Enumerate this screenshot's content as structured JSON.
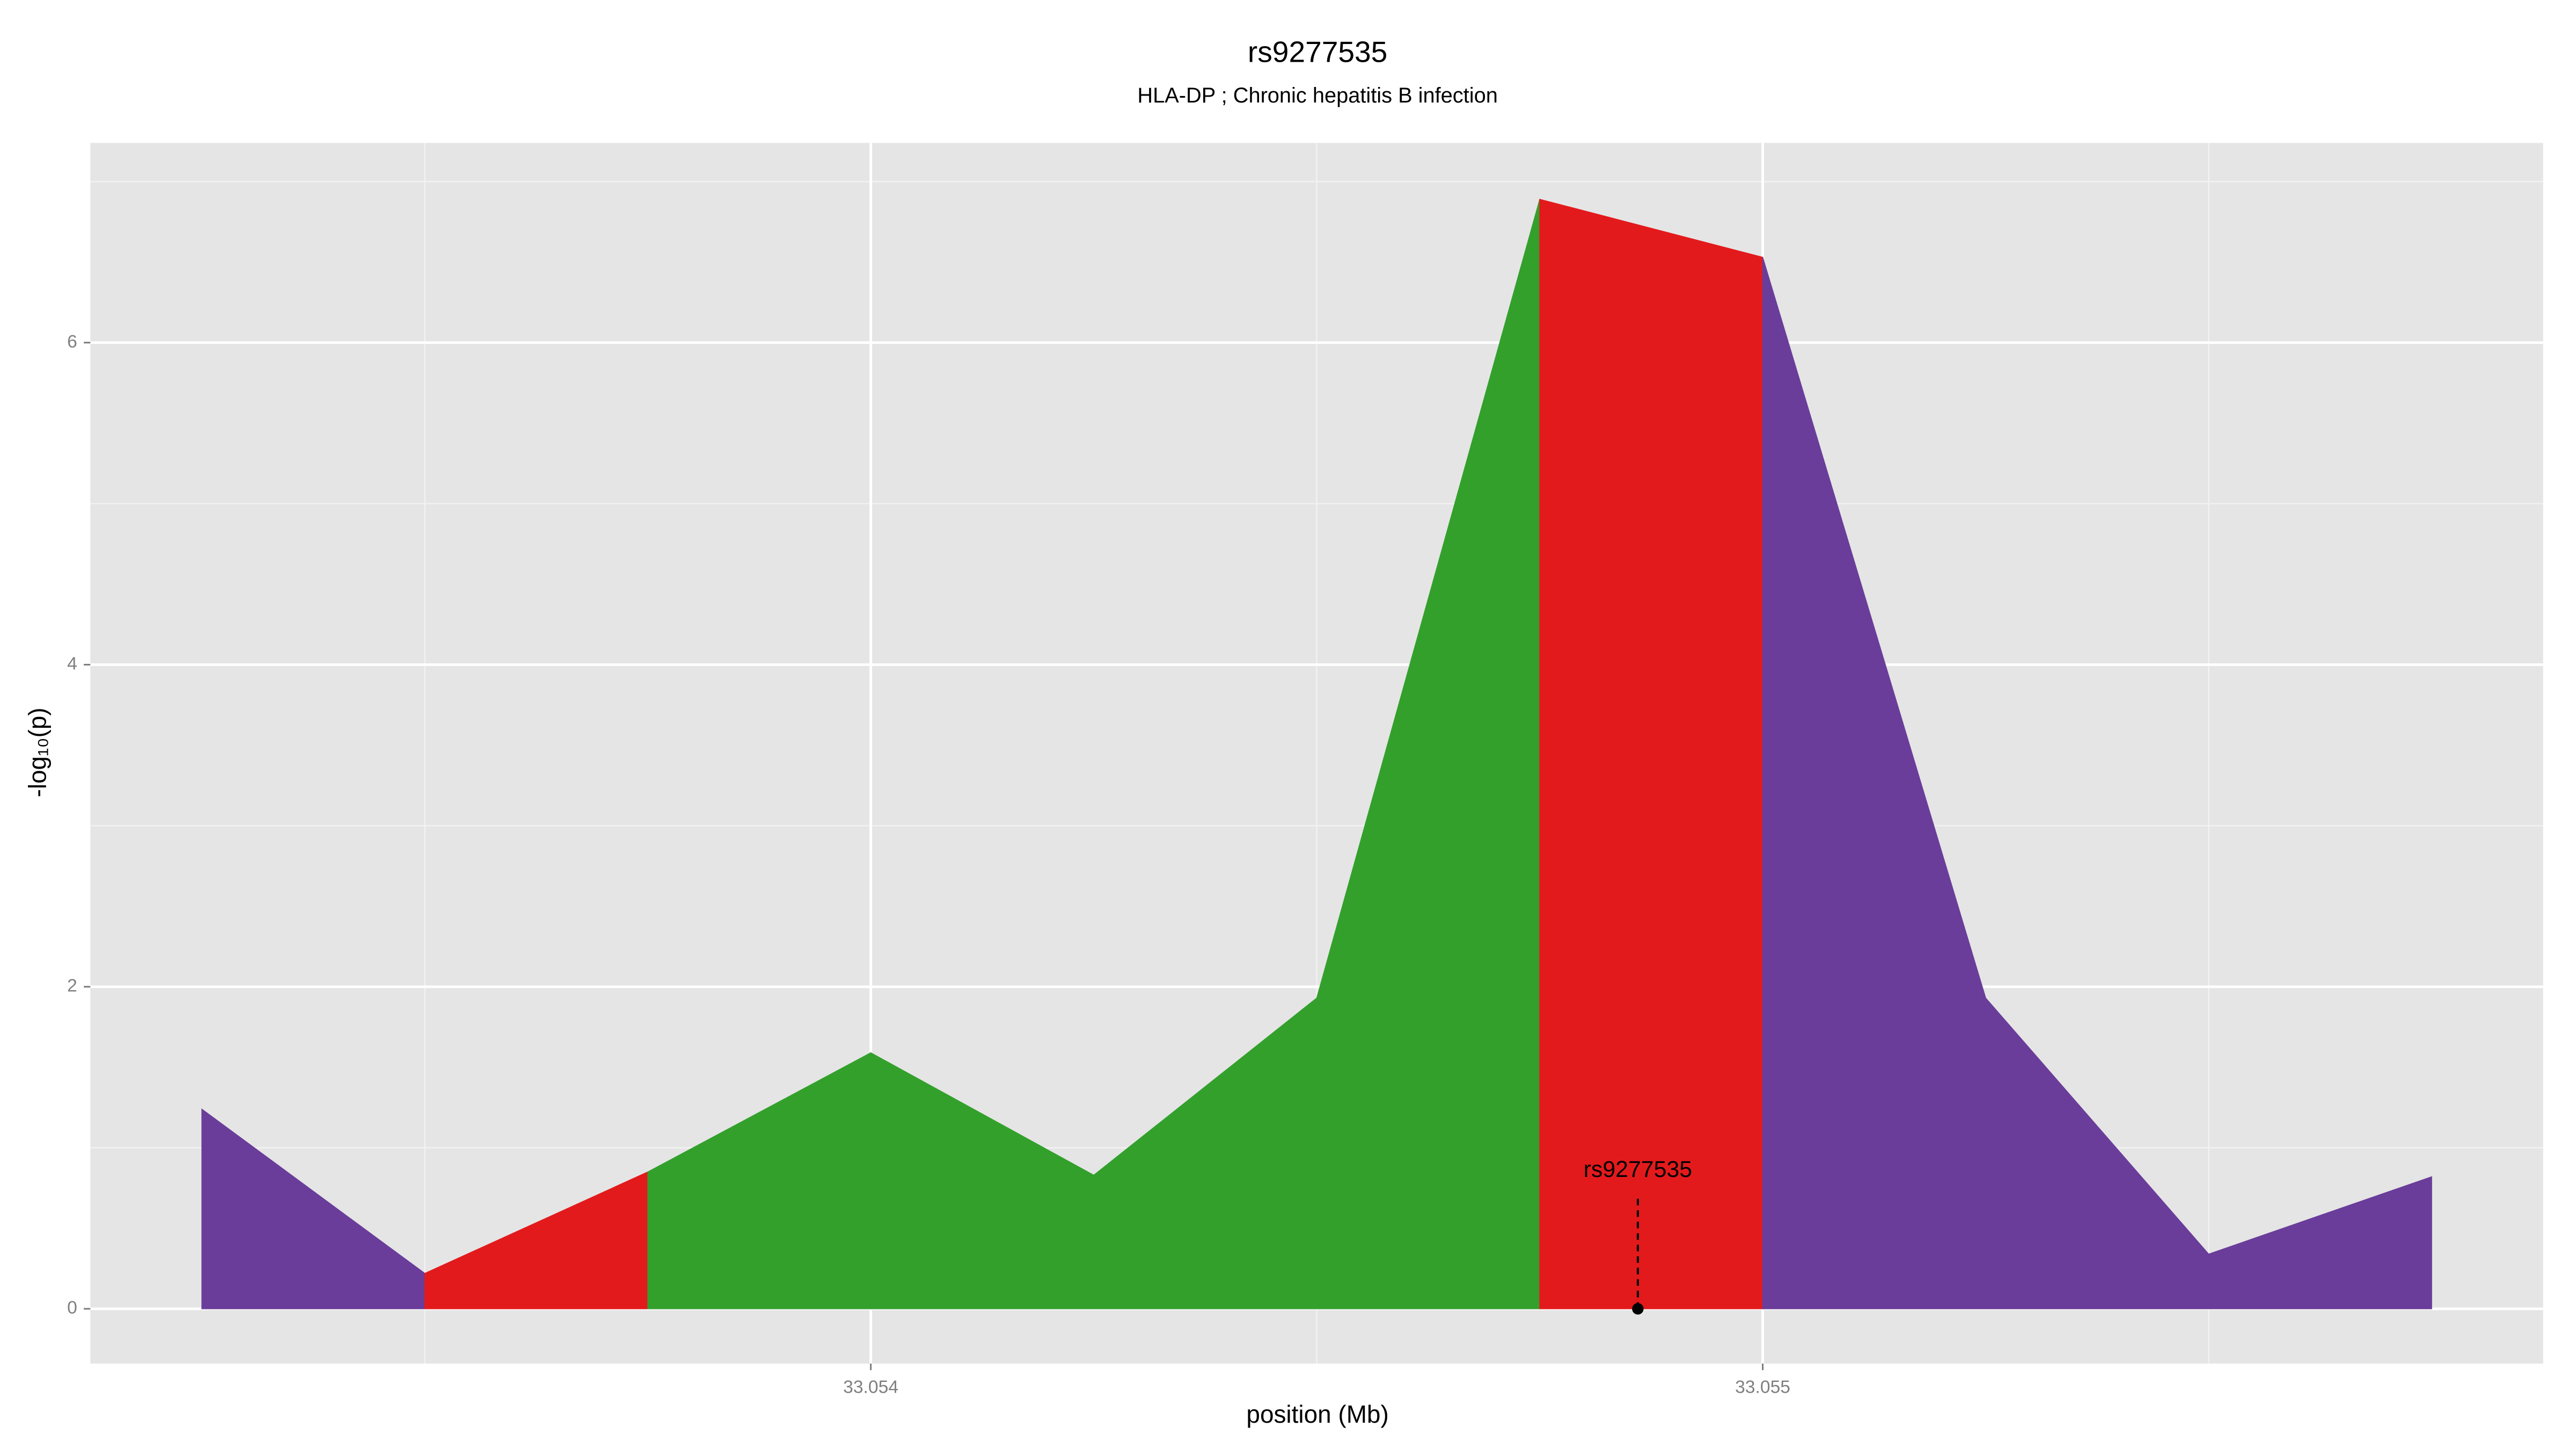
{
  "chart_data": {
    "type": "area-segments",
    "title": "rs9277535",
    "subtitle": "HLA-DP ; Chronic hepatitis B infection",
    "x_label": "position (Mb)",
    "y_label": "-log₁₀(p)",
    "x": [
      33.05325,
      33.0535,
      33.05375,
      33.054,
      33.05425,
      33.0545,
      33.05475,
      33.055,
      33.05525,
      33.0555,
      33.05575
    ],
    "values": [
      1.24,
      0.22,
      0.85,
      1.59,
      0.83,
      1.93,
      6.89,
      6.53,
      1.93,
      0.34,
      0.82
    ],
    "segment_colors": [
      "#6a3d9a",
      "#e31a1c",
      "#33a02c",
      "#33a02c",
      "#33a02c",
      "#33a02c",
      "#e31a1c",
      "#6a3d9a",
      "#6a3d9a",
      "#6a3d9a"
    ],
    "xlim": [
      33.053125,
      33.055875
    ],
    "ylim": [
      -0.34,
      7.24
    ],
    "xticks": [
      33.054,
      33.055
    ],
    "xminorticks": [
      33.0535,
      33.0545,
      33.0555
    ],
    "yticks": [
      0,
      2,
      4,
      6
    ],
    "yminorticks": [
      1,
      3,
      5,
      7
    ],
    "grid": true,
    "annotation": {
      "text": "rs9277535",
      "x": 33.05486,
      "y": 0
    }
  }
}
